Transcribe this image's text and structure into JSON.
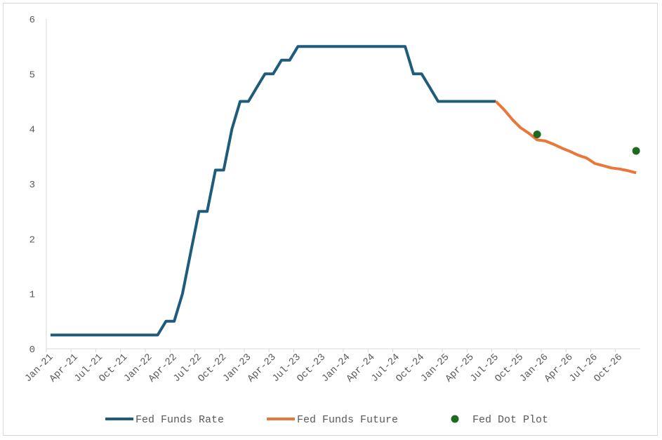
{
  "chart_data": {
    "type": "line",
    "title": "",
    "xlabel": "",
    "ylabel": "",
    "ylim": [
      0,
      6
    ],
    "yticks": [
      "0",
      "1",
      "2",
      "3",
      "4",
      "5",
      "6"
    ],
    "grid": false,
    "legend_position": "bottom",
    "x_tick_labels": [
      "Jan-21",
      "Apr-21",
      "Jul-21",
      "Oct-21",
      "Jan-22",
      "Apr-22",
      "Jul-22",
      "Oct-22",
      "Jan-23",
      "Apr-23",
      "Jul-23",
      "Oct-23",
      "Jan-24",
      "Apr-24",
      "Jul-24",
      "Oct-24",
      "Jan-25",
      "Apr-25",
      "Jul-25",
      "Oct-25",
      "Jan-26",
      "Apr-26",
      "Jul-26",
      "Oct-26"
    ],
    "x_range": [
      "Jan-21",
      "Dec-26"
    ],
    "series": [
      {
        "name": "Fed Funds Rate",
        "color": "#1f5c7c",
        "kind": "line",
        "points": [
          [
            "Jan-21",
            0.25
          ],
          [
            "Feb-21",
            0.25
          ],
          [
            "Mar-21",
            0.25
          ],
          [
            "Apr-21",
            0.25
          ],
          [
            "May-21",
            0.25
          ],
          [
            "Jun-21",
            0.25
          ],
          [
            "Jul-21",
            0.25
          ],
          [
            "Aug-21",
            0.25
          ],
          [
            "Sep-21",
            0.25
          ],
          [
            "Oct-21",
            0.25
          ],
          [
            "Nov-21",
            0.25
          ],
          [
            "Dec-21",
            0.25
          ],
          [
            "Jan-22",
            0.25
          ],
          [
            "Feb-22",
            0.25
          ],
          [
            "Mar-22",
            0.5
          ],
          [
            "Apr-22",
            0.5
          ],
          [
            "May-22",
            1.0
          ],
          [
            "Jun-22",
            1.75
          ],
          [
            "Jul-22",
            2.5
          ],
          [
            "Aug-22",
            2.5
          ],
          [
            "Sep-22",
            3.25
          ],
          [
            "Oct-22",
            3.25
          ],
          [
            "Nov-22",
            4.0
          ],
          [
            "Dec-22",
            4.5
          ],
          [
            "Jan-23",
            4.5
          ],
          [
            "Feb-23",
            4.75
          ],
          [
            "Mar-23",
            5.0
          ],
          [
            "Apr-23",
            5.0
          ],
          [
            "May-23",
            5.25
          ],
          [
            "Jun-23",
            5.25
          ],
          [
            "Jul-23",
            5.5
          ],
          [
            "Aug-23",
            5.5
          ],
          [
            "Sep-23",
            5.5
          ],
          [
            "Oct-23",
            5.5
          ],
          [
            "Nov-23",
            5.5
          ],
          [
            "Dec-23",
            5.5
          ],
          [
            "Jan-24",
            5.5
          ],
          [
            "Feb-24",
            5.5
          ],
          [
            "Mar-24",
            5.5
          ],
          [
            "Apr-24",
            5.5
          ],
          [
            "May-24",
            5.5
          ],
          [
            "Jun-24",
            5.5
          ],
          [
            "Jul-24",
            5.5
          ],
          [
            "Aug-24",
            5.5
          ],
          [
            "Sep-24",
            5.0
          ],
          [
            "Oct-24",
            5.0
          ],
          [
            "Nov-24",
            4.75
          ],
          [
            "Dec-24",
            4.5
          ],
          [
            "Jan-25",
            4.5
          ],
          [
            "Feb-25",
            4.5
          ],
          [
            "Mar-25",
            4.5
          ],
          [
            "Apr-25",
            4.5
          ],
          [
            "May-25",
            4.5
          ],
          [
            "Jun-25",
            4.5
          ],
          [
            "Jul-25",
            4.5
          ]
        ]
      },
      {
        "name": "Fed Funds Future",
        "color": "#e9773a",
        "kind": "line",
        "points": [
          [
            "Jul-25",
            4.5
          ],
          [
            "Aug-25",
            4.35
          ],
          [
            "Sep-25",
            4.17
          ],
          [
            "Oct-25",
            4.02
          ],
          [
            "Nov-25",
            3.92
          ],
          [
            "Dec-25",
            3.8
          ],
          [
            "Jan-26",
            3.78
          ],
          [
            "Feb-26",
            3.72
          ],
          [
            "Mar-26",
            3.65
          ],
          [
            "Apr-26",
            3.59
          ],
          [
            "May-26",
            3.52
          ],
          [
            "Jun-26",
            3.47
          ],
          [
            "Jul-26",
            3.37
          ],
          [
            "Aug-26",
            3.33
          ],
          [
            "Sep-26",
            3.29
          ],
          [
            "Oct-26",
            3.27
          ],
          [
            "Nov-26",
            3.24
          ],
          [
            "Dec-26",
            3.2
          ]
        ]
      },
      {
        "name": "Fed Dot Plot",
        "color": "#1e6b20",
        "kind": "scatter",
        "points": [
          [
            "Dec-25",
            3.9
          ],
          [
            "Dec-26",
            3.6
          ]
        ]
      }
    ]
  }
}
